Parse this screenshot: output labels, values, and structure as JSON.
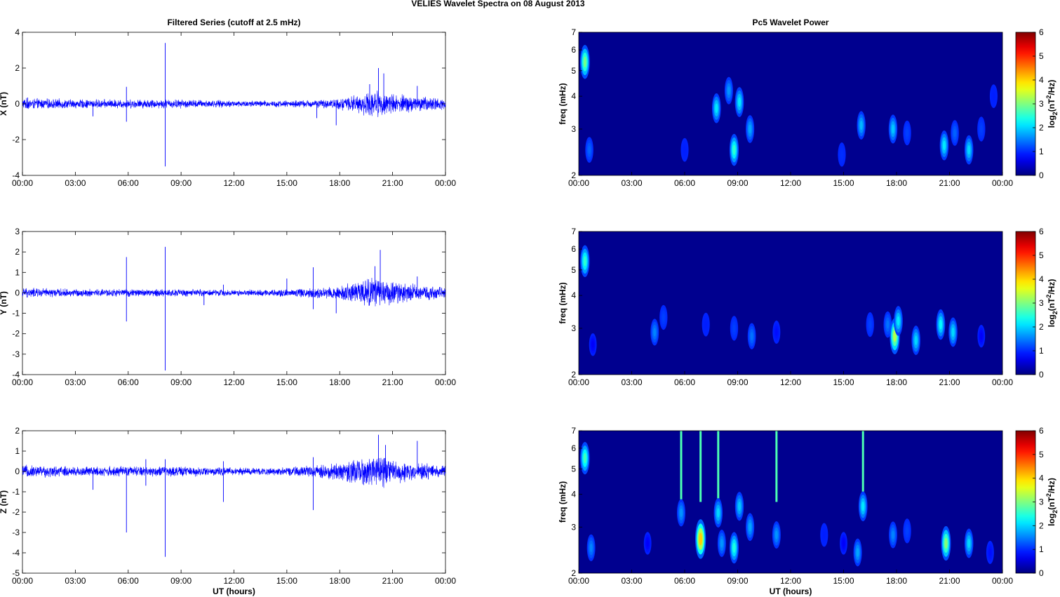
{
  "figure": {
    "suptitle": "VELIES Wavelet Spectra on 08 August     2013"
  },
  "colors": {
    "trace": "#0000ff",
    "background_power": "#00008f",
    "axis": "#000000"
  },
  "chart_data": [
    {
      "type": "line",
      "panel": "X",
      "title": "Filtered Series (cutoff at 2.5 mHz)",
      "ylabel": "X (nT)",
      "xlabel": "",
      "x_ticks": [
        "00:00",
        "03:00",
        "06:00",
        "09:00",
        "12:00",
        "15:00",
        "18:00",
        "21:00",
        "00:00"
      ],
      "xlim_hours": [
        0,
        24
      ],
      "ylim": [
        -4,
        4
      ],
      "y_ticks": [
        -4,
        -2,
        0,
        2,
        4
      ],
      "noise_envelope": [
        [
          0,
          0.25
        ],
        [
          3,
          0.2
        ],
        [
          6,
          0.2
        ],
        [
          9,
          0.2
        ],
        [
          12,
          0.15
        ],
        [
          15,
          0.15
        ],
        [
          17.5,
          0.2
        ],
        [
          19,
          0.4
        ],
        [
          20,
          0.6
        ],
        [
          21,
          0.45
        ],
        [
          22.5,
          0.35
        ],
        [
          24,
          0.25
        ]
      ],
      "spikes": [
        {
          "hour": 0.3,
          "value": 0.35
        },
        {
          "hour": 4.0,
          "value": -0.7
        },
        {
          "hour": 5.9,
          "value": 0.95
        },
        {
          "hour": 5.9,
          "value": -1.0
        },
        {
          "hour": 8.1,
          "value": 3.4
        },
        {
          "hour": 8.1,
          "value": -3.5
        },
        {
          "hour": 16.7,
          "value": -0.8
        },
        {
          "hour": 17.8,
          "value": -1.2
        },
        {
          "hour": 19.7,
          "value": 1.1
        },
        {
          "hour": 20.2,
          "value": 2.0
        },
        {
          "hour": 20.5,
          "value": 1.7
        },
        {
          "hour": 22.4,
          "value": 1.0
        }
      ]
    },
    {
      "type": "line",
      "panel": "Y",
      "title": "",
      "ylabel": "Y (nT)",
      "xlabel": "",
      "x_ticks": [
        "00:00",
        "03:00",
        "06:00",
        "09:00",
        "12:00",
        "15:00",
        "18:00",
        "21:00",
        "00:00"
      ],
      "xlim_hours": [
        0,
        24
      ],
      "ylim": [
        -4,
        3
      ],
      "y_ticks": [
        -4,
        -3,
        -2,
        -1,
        0,
        1,
        2,
        3
      ],
      "noise_envelope": [
        [
          0,
          0.2
        ],
        [
          3,
          0.15
        ],
        [
          6,
          0.15
        ],
        [
          9,
          0.15
        ],
        [
          12,
          0.12
        ],
        [
          15,
          0.15
        ],
        [
          17.5,
          0.25
        ],
        [
          19,
          0.45
        ],
        [
          20,
          0.65
        ],
        [
          21,
          0.45
        ],
        [
          22.5,
          0.3
        ],
        [
          24,
          0.2
        ]
      ],
      "spikes": [
        {
          "hour": 5.9,
          "value": 1.75
        },
        {
          "hour": 5.9,
          "value": -1.4
        },
        {
          "hour": 8.1,
          "value": 2.25
        },
        {
          "hour": 8.1,
          "value": -3.8
        },
        {
          "hour": 10.3,
          "value": -0.6
        },
        {
          "hour": 11.4,
          "value": 0.4
        },
        {
          "hour": 15.0,
          "value": 0.7
        },
        {
          "hour": 16.5,
          "value": 1.25
        },
        {
          "hour": 16.5,
          "value": -0.8
        },
        {
          "hour": 17.8,
          "value": -1.0
        },
        {
          "hour": 20.0,
          "value": 1.3
        },
        {
          "hour": 20.3,
          "value": 2.1
        },
        {
          "hour": 22.4,
          "value": 0.8
        }
      ]
    },
    {
      "type": "line",
      "panel": "Z",
      "title": "",
      "ylabel": "Z (nT)",
      "xlabel": "UT (hours)",
      "x_ticks": [
        "00:00",
        "03:00",
        "06:00",
        "09:00",
        "12:00",
        "15:00",
        "18:00",
        "21:00",
        "00:00"
      ],
      "xlim_hours": [
        0,
        24
      ],
      "ylim": [
        -5,
        2
      ],
      "y_ticks": [
        -5,
        -4,
        -3,
        -2,
        -1,
        0,
        1,
        2
      ],
      "noise_envelope": [
        [
          0,
          0.25
        ],
        [
          3,
          0.2
        ],
        [
          6,
          0.2
        ],
        [
          9,
          0.2
        ],
        [
          12,
          0.15
        ],
        [
          15,
          0.15
        ],
        [
          17.5,
          0.3
        ],
        [
          19,
          0.5
        ],
        [
          20,
          0.7
        ],
        [
          21,
          0.5
        ],
        [
          22.5,
          0.35
        ],
        [
          24,
          0.25
        ]
      ],
      "spikes": [
        {
          "hour": 4.0,
          "value": -0.9
        },
        {
          "hour": 5.9,
          "value": -3.0
        },
        {
          "hour": 7.0,
          "value": 0.6
        },
        {
          "hour": 7.0,
          "value": -0.7
        },
        {
          "hour": 8.1,
          "value": 0.6
        },
        {
          "hour": 8.1,
          "value": -4.2
        },
        {
          "hour": 11.4,
          "value": 0.5
        },
        {
          "hour": 11.4,
          "value": -1.5
        },
        {
          "hour": 16.5,
          "value": 0.7
        },
        {
          "hour": 16.5,
          "value": -1.9
        },
        {
          "hour": 20.2,
          "value": 1.8
        },
        {
          "hour": 20.6,
          "value": 1.3
        },
        {
          "hour": 22.4,
          "value": 1.5
        }
      ]
    },
    {
      "type": "heatmap",
      "panel": "X",
      "title": "Pc5 Wavelet Power",
      "ylabel": "freq (mHz)",
      "xlabel": "",
      "x_ticks": [
        "00:00",
        "03:00",
        "06:00",
        "09:00",
        "12:00",
        "15:00",
        "18:00",
        "21:00",
        "00:00"
      ],
      "xlim_hours": [
        0,
        24
      ],
      "y_scale": "log",
      "ylim_mhz": [
        2,
        7
      ],
      "y_ticks": [
        2,
        3,
        4,
        5,
        6,
        7
      ],
      "colorbar": {
        "label": "log2(nT2/Hz)",
        "range": [
          0,
          6
        ],
        "ticks": [
          0,
          1,
          2,
          3,
          4,
          5,
          6
        ],
        "colormap": "jet"
      },
      "blobs": [
        {
          "hour": 0.35,
          "freq_mhz": 5.4,
          "power": 2.8
        },
        {
          "hour": 0.6,
          "freq_mhz": 2.5,
          "power": 1.2
        },
        {
          "hour": 6.0,
          "freq_mhz": 2.5,
          "power": 0.8
        },
        {
          "hour": 7.8,
          "freq_mhz": 3.6,
          "power": 2.0
        },
        {
          "hour": 8.5,
          "freq_mhz": 4.2,
          "power": 1.5
        },
        {
          "hour": 8.8,
          "freq_mhz": 2.5,
          "power": 2.4
        },
        {
          "hour": 9.1,
          "freq_mhz": 3.8,
          "power": 2.0
        },
        {
          "hour": 9.7,
          "freq_mhz": 3.0,
          "power": 1.6
        },
        {
          "hour": 14.9,
          "freq_mhz": 2.4,
          "power": 0.9
        },
        {
          "hour": 16.0,
          "freq_mhz": 3.1,
          "power": 1.7
        },
        {
          "hour": 17.8,
          "freq_mhz": 3.0,
          "power": 1.8
        },
        {
          "hour": 18.6,
          "freq_mhz": 2.9,
          "power": 1.0
        },
        {
          "hour": 20.7,
          "freq_mhz": 2.6,
          "power": 2.0
        },
        {
          "hour": 21.3,
          "freq_mhz": 2.9,
          "power": 1.2
        },
        {
          "hour": 22.1,
          "freq_mhz": 2.5,
          "power": 1.9
        },
        {
          "hour": 22.8,
          "freq_mhz": 3.0,
          "power": 1.0
        },
        {
          "hour": 23.5,
          "freq_mhz": 4.0,
          "power": 0.8
        }
      ]
    },
    {
      "type": "heatmap",
      "panel": "Y",
      "title": "",
      "ylabel": "freq (mHz)",
      "xlabel": "",
      "x_ticks": [
        "00:00",
        "03:00",
        "06:00",
        "09:00",
        "12:00",
        "15:00",
        "18:00",
        "21:00",
        "00:00"
      ],
      "xlim_hours": [
        0,
        24
      ],
      "y_scale": "log",
      "ylim_mhz": [
        2,
        7
      ],
      "y_ticks": [
        2,
        3,
        4,
        5,
        6,
        7
      ],
      "colorbar": {
        "label": "log2(nT2/Hz)",
        "range": [
          0,
          6
        ],
        "ticks": [
          0,
          1,
          2,
          3,
          4,
          5,
          6
        ],
        "colormap": "jet"
      },
      "blobs": [
        {
          "hour": 0.35,
          "freq_mhz": 5.4,
          "power": 2.4
        },
        {
          "hour": 0.8,
          "freq_mhz": 2.6,
          "power": 0.6
        },
        {
          "hour": 4.3,
          "freq_mhz": 2.9,
          "power": 1.4
        },
        {
          "hour": 4.8,
          "freq_mhz": 3.3,
          "power": 1.0
        },
        {
          "hour": 7.2,
          "freq_mhz": 3.1,
          "power": 0.8
        },
        {
          "hour": 8.8,
          "freq_mhz": 3.0,
          "power": 1.0
        },
        {
          "hour": 9.8,
          "freq_mhz": 2.8,
          "power": 1.3
        },
        {
          "hour": 11.2,
          "freq_mhz": 2.9,
          "power": 0.7
        },
        {
          "hour": 16.5,
          "freq_mhz": 3.1,
          "power": 1.0
        },
        {
          "hour": 17.5,
          "freq_mhz": 3.1,
          "power": 1.3
        },
        {
          "hour": 17.9,
          "freq_mhz": 2.8,
          "power": 3.2
        },
        {
          "hour": 18.1,
          "freq_mhz": 3.2,
          "power": 2.0
        },
        {
          "hour": 19.1,
          "freq_mhz": 2.7,
          "power": 1.9
        },
        {
          "hour": 20.5,
          "freq_mhz": 3.1,
          "power": 2.1
        },
        {
          "hour": 21.2,
          "freq_mhz": 2.9,
          "power": 1.9
        },
        {
          "hour": 22.8,
          "freq_mhz": 2.8,
          "power": 0.6
        }
      ]
    },
    {
      "type": "heatmap",
      "panel": "Z",
      "title": "",
      "ylabel": "freq (mHz)",
      "xlabel": "UT (hours)",
      "x_ticks": [
        "00:00",
        "03:00",
        "06:00",
        "09:00",
        "12:00",
        "15:00",
        "18:00",
        "21:00",
        "00:00"
      ],
      "xlim_hours": [
        0,
        24
      ],
      "y_scale": "log",
      "ylim_mhz": [
        2,
        7
      ],
      "y_ticks": [
        2,
        3,
        4,
        5,
        6,
        7
      ],
      "colorbar": {
        "label": "log2(nT2/Hz)",
        "range": [
          0,
          6
        ],
        "ticks": [
          0,
          1,
          2,
          3,
          4,
          5,
          6
        ],
        "colormap": "jet"
      },
      "blobs": [
        {
          "hour": 0.35,
          "freq_mhz": 5.5,
          "power": 2.5
        },
        {
          "hour": 0.7,
          "freq_mhz": 2.5,
          "power": 1.4
        },
        {
          "hour": 3.9,
          "freq_mhz": 2.6,
          "power": 0.6
        },
        {
          "hour": 5.8,
          "freq_mhz": 3.4,
          "power": 1.5
        },
        {
          "hour": 6.9,
          "freq_mhz": 2.7,
          "power": 3.9
        },
        {
          "hour": 7.9,
          "freq_mhz": 3.4,
          "power": 1.9
        },
        {
          "hour": 8.1,
          "freq_mhz": 2.6,
          "power": 1.5
        },
        {
          "hour": 8.8,
          "freq_mhz": 2.5,
          "power": 2.3
        },
        {
          "hour": 9.1,
          "freq_mhz": 3.6,
          "power": 1.8
        },
        {
          "hour": 9.7,
          "freq_mhz": 3.0,
          "power": 1.6
        },
        {
          "hour": 11.2,
          "freq_mhz": 2.8,
          "power": 1.5
        },
        {
          "hour": 13.9,
          "freq_mhz": 2.8,
          "power": 0.8
        },
        {
          "hour": 15.0,
          "freq_mhz": 2.6,
          "power": 0.6
        },
        {
          "hour": 15.8,
          "freq_mhz": 2.4,
          "power": 1.6
        },
        {
          "hour": 16.1,
          "freq_mhz": 3.6,
          "power": 2.0
        },
        {
          "hour": 17.8,
          "freq_mhz": 2.8,
          "power": 1.4
        },
        {
          "hour": 18.6,
          "freq_mhz": 2.9,
          "power": 1.0
        },
        {
          "hour": 20.8,
          "freq_mhz": 2.6,
          "power": 2.9
        },
        {
          "hour": 22.1,
          "freq_mhz": 2.6,
          "power": 1.9
        },
        {
          "hour": 23.3,
          "freq_mhz": 2.4,
          "power": 0.7
        }
      ],
      "streaks_hours": [
        5.8,
        6.9,
        7.9,
        11.2,
        16.1
      ]
    }
  ]
}
